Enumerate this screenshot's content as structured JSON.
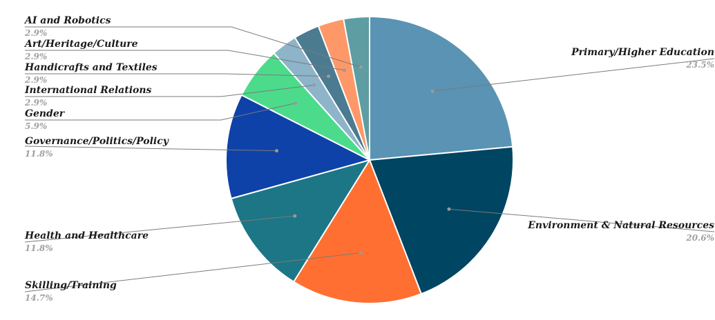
{
  "chart_data": {
    "type": "pie",
    "title": "",
    "slices": [
      {
        "label": "Primary/Higher Education",
        "value": 23.5,
        "value_label": "23.5%",
        "color": "#5a93b3"
      },
      {
        "label": "Environment & Natural Resources",
        "value": 20.6,
        "value_label": "20.6%",
        "color": "#004561"
      },
      {
        "label": "Skilling/Training",
        "value": 14.7,
        "value_label": "14.7%",
        "color": "#ff6f31"
      },
      {
        "label": "Health and Healthcare",
        "value": 11.8,
        "value_label": "11.8%",
        "color": "#1c7685"
      },
      {
        "label": "Governance/Politics/Policy",
        "value": 11.8,
        "value_label": "11.8%",
        "color": "#0f42a8"
      },
      {
        "label": "Gender",
        "value": 5.9,
        "value_label": "5.9%",
        "color": "#4cdb8b"
      },
      {
        "label": "International Relations",
        "value": 2.9,
        "value_label": "2.9%",
        "color": "#8db4c9"
      },
      {
        "label": "Handicrafts and Textiles",
        "value": 2.9,
        "value_label": "2.9%",
        "color": "#4b7b90"
      },
      {
        "label": "Art/Heritage/Culture",
        "value": 2.9,
        "value_label": "2.9%",
        "color": "#ff9868"
      },
      {
        "label": "AI and Robotics",
        "value": 2.9,
        "value_label": "2.9%",
        "color": "#5e9ea2"
      }
    ]
  }
}
